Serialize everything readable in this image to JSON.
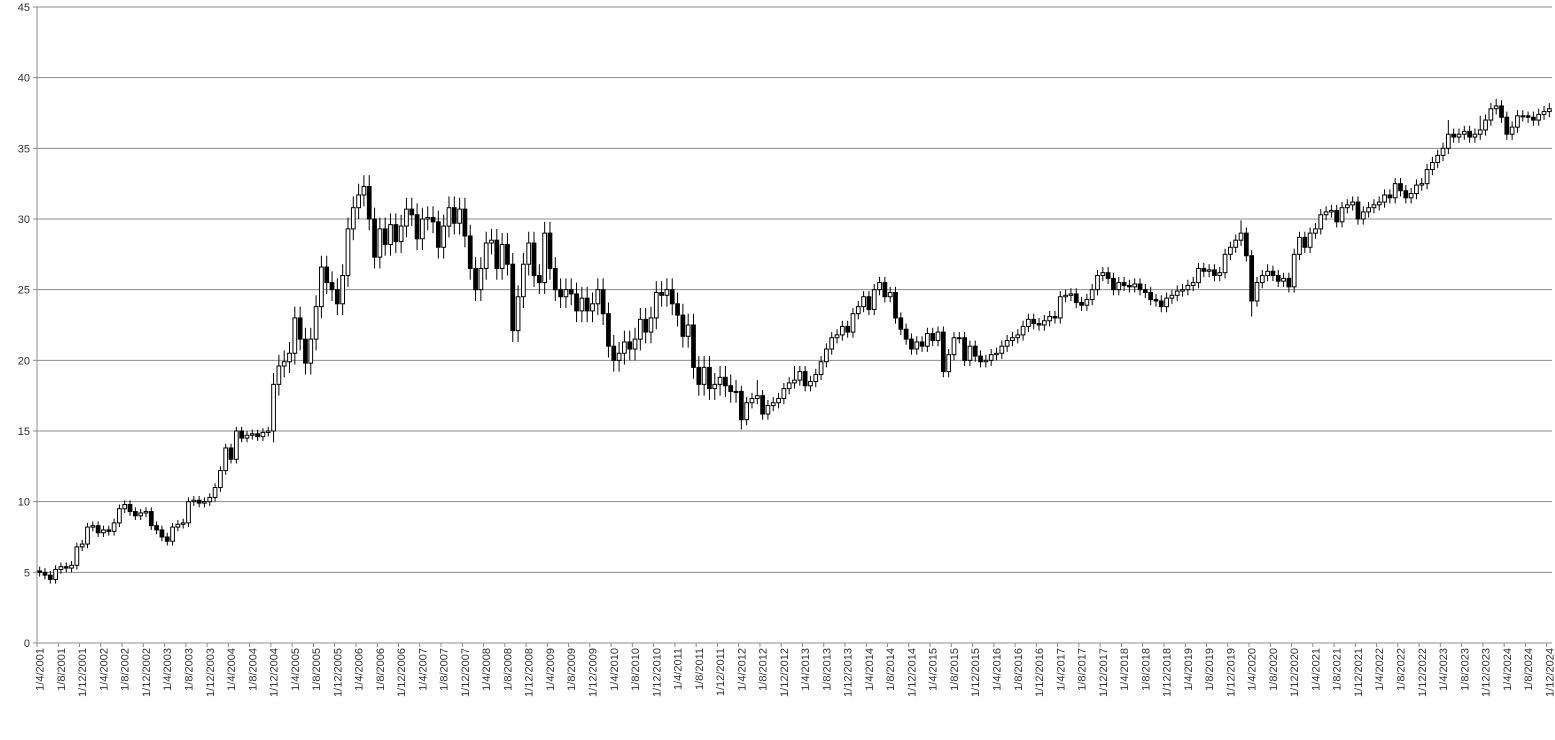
{
  "chart_data": {
    "type": "candlestick",
    "categories": [
      "1/4/2001",
      null,
      null,
      null,
      "1/8/2001",
      null,
      null,
      null,
      "1/12/2001",
      null,
      null,
      null,
      "1/4/2002",
      null,
      null,
      null,
      "1/8/2002",
      null,
      null,
      null,
      "1/12/2002",
      null,
      null,
      null,
      "1/4/2003",
      null,
      null,
      null,
      "1/8/2003",
      null,
      null,
      null,
      "1/12/2003",
      null,
      null,
      null,
      "1/4/2004",
      null,
      null,
      null,
      "1/8/2004",
      null,
      null,
      null,
      "1/12/2004",
      null,
      null,
      null,
      "1/4/2005",
      null,
      null,
      null,
      "1/8/2005",
      null,
      null,
      null,
      "1/12/2005",
      null,
      null,
      null,
      "1/4/2006",
      null,
      null,
      null,
      "1/8/2006",
      null,
      null,
      null,
      "1/12/2006",
      null,
      null,
      null,
      "1/4/2007",
      null,
      null,
      null,
      "1/8/2007",
      null,
      null,
      null,
      "1/12/2007",
      null,
      null,
      null,
      "1/4/2008",
      null,
      null,
      null,
      "1/8/2008",
      null,
      null,
      null,
      "1/12/2008",
      null,
      null,
      null,
      "1/4/2009",
      null,
      null,
      null,
      "1/8/2009",
      null,
      null,
      null,
      "1/12/2009",
      null,
      null,
      null,
      "1/4/2010",
      null,
      null,
      null,
      "1/8/2010",
      null,
      null,
      null,
      "1/12/2010",
      null,
      null,
      null,
      "1/4/2011",
      null,
      null,
      null,
      "1/8/2011",
      null,
      null,
      null,
      "1/12/2011",
      null,
      null,
      null,
      "1/4/2012",
      null,
      null,
      null,
      "1/8/2012",
      null,
      null,
      null,
      "1/12/2012",
      null,
      null,
      null,
      "1/4/2013",
      null,
      null,
      null,
      "1/8/2013",
      null,
      null,
      null,
      "1/12/2013",
      null,
      null,
      null,
      "1/4/2014",
      null,
      null,
      null,
      "1/8/2014",
      null,
      null,
      null,
      "1/12/2014",
      null,
      null,
      null,
      "1/4/2015",
      null,
      null,
      null,
      "1/8/2015",
      null,
      null,
      null,
      "1/12/2015",
      null,
      null,
      null,
      "1/4/2016",
      null,
      null,
      null,
      "1/8/2016",
      null,
      null,
      null,
      "1/12/2016",
      null,
      null,
      null,
      "1/4/2017",
      null,
      null,
      null,
      "1/8/2017",
      null,
      null,
      null,
      "1/12/2017",
      null,
      null,
      null,
      "1/4/2018",
      null,
      null,
      null,
      "1/8/2018",
      null,
      null,
      null,
      "1/12/2018",
      null,
      null,
      null,
      "1/4/2019",
      null,
      null,
      null,
      "1/8/2019",
      null,
      null,
      null,
      "1/12/2019",
      null,
      null,
      null,
      "1/4/2020",
      null,
      null,
      null,
      "1/8/2020",
      null,
      null,
      null,
      "1/12/2020",
      null,
      null,
      null,
      "1/4/2021",
      null,
      null,
      null,
      "1/8/2021",
      null,
      null,
      null,
      "1/12/2021",
      null,
      null,
      null,
      "1/4/2022",
      null,
      null,
      null,
      "1/8/2022",
      null,
      null,
      null,
      "1/12/2022",
      null,
      null,
      null,
      "1/4/2023",
      null,
      null,
      null,
      "1/8/2023",
      null,
      null,
      null,
      "1/12/2023",
      null,
      null,
      null,
      "1/4/2024",
      null,
      null,
      null,
      "1/8/2024",
      null,
      null,
      null,
      "1/12/2024"
    ],
    "open": [
      5.1,
      5.0,
      4.8,
      4.5,
      5.2,
      5.4,
      5.3,
      5.5,
      6.8,
      7.0,
      8.2,
      8.3,
      7.8,
      8.0,
      7.9,
      8.5,
      9.5,
      9.8,
      9.3,
      9.0,
      9.2,
      9.3,
      8.3,
      8.0,
      7.5,
      7.2,
      8.2,
      8.4,
      8.5,
      10.0,
      10.1,
      9.9,
      10.0,
      10.3,
      11.0,
      12.2,
      13.8,
      13.0,
      15.0,
      14.5,
      14.7,
      14.8,
      14.6,
      14.9,
      15.0,
      18.3,
      19.6,
      19.9,
      20.5,
      23.0,
      21.5,
      19.8,
      21.5,
      23.8,
      26.6,
      25.5,
      25.0,
      24.0,
      26.0,
      29.3,
      30.8,
      31.7,
      32.3,
      30.0,
      27.3,
      29.3,
      28.2,
      29.6,
      28.4,
      29.5,
      30.7,
      30.3,
      28.6,
      30.0,
      30.1,
      29.8,
      28.0,
      29.5,
      30.8,
      29.7,
      30.7,
      28.8,
      26.5,
      25.0,
      26.5,
      28.3,
      28.5,
      26.5,
      28.2,
      26.8,
      22.1,
      24.5,
      26.8,
      28.3,
      26.0,
      25.5,
      29.0,
      26.5,
      25.0,
      24.5,
      25.0,
      24.7,
      23.5,
      24.4,
      23.5,
      24.0,
      25.0,
      23.3,
      21.0,
      20.0,
      20.5,
      21.3,
      20.8,
      21.5,
      22.9,
      22.0,
      23.0,
      24.8,
      24.6,
      25.0,
      24.0,
      23.2,
      21.7,
      22.5,
      19.5,
      18.3,
      19.5,
      18.0,
      18.3,
      18.8,
      18.2,
      17.8,
      17.8,
      15.8,
      17.0,
      17.3,
      17.5,
      16.2,
      16.8,
      17.0,
      17.3,
      18.0,
      18.4,
      18.6,
      19.2,
      18.2,
      18.5,
      19.0,
      19.9,
      20.8,
      21.6,
      21.8,
      22.4,
      22.0,
      23.3,
      23.8,
      24.5,
      23.6,
      25.0,
      25.5,
      24.5,
      24.8,
      23.0,
      22.2,
      21.5,
      20.8,
      21.3,
      21.0,
      21.9,
      21.4,
      22.0,
      19.2,
      20.4,
      21.6,
      21.6,
      20.0,
      21.0,
      20.3,
      19.9,
      20.0,
      20.4,
      20.5,
      21.0,
      21.4,
      21.6,
      21.8,
      22.4,
      22.9,
      22.6,
      22.5,
      22.8,
      23.1,
      23.0,
      24.5,
      24.6,
      24.7,
      24.1,
      23.9,
      24.3,
      25.0,
      26.0,
      26.2,
      25.8,
      25.0,
      25.5,
      25.3,
      25.2,
      25.4,
      25.0,
      24.8,
      24.3,
      24.2,
      23.8,
      24.4,
      24.6,
      24.9,
      25.0,
      25.3,
      25.5,
      26.5,
      26.3,
      26.4,
      26.0,
      26.2,
      27.5,
      28.0,
      28.5,
      29.0,
      27.4,
      24.2,
      25.5,
      26.0,
      26.3,
      26.0,
      25.6,
      25.8,
      25.2,
      27.5,
      28.7,
      28.0,
      29.0,
      29.3,
      30.3,
      30.5,
      30.6,
      29.8,
      30.8,
      31.0,
      31.2,
      30.0,
      30.5,
      30.8,
      31.0,
      31.2,
      31.7,
      31.5,
      32.5,
      32.0,
      31.5,
      31.8,
      32.4,
      32.5,
      33.5,
      34.0,
      34.5,
      35.0,
      36.0,
      35.8,
      36.0,
      36.2,
      35.8,
      36.0,
      36.3,
      37.0,
      37.8,
      38.0,
      37.2,
      36.0,
      36.5,
      37.3,
      37.3,
      37.2,
      37.0,
      37.4,
      37.6
    ],
    "high": [
      5.4,
      5.3,
      5.1,
      5.5,
      5.7,
      5.7,
      5.8,
      7.1,
      7.3,
      8.5,
      8.6,
      8.6,
      8.3,
      8.3,
      8.8,
      9.8,
      10.1,
      10.1,
      9.6,
      9.5,
      9.6,
      9.6,
      8.6,
      8.3,
      7.8,
      8.5,
      8.7,
      8.8,
      10.3,
      10.4,
      10.4,
      10.3,
      10.6,
      11.3,
      12.5,
      14.1,
      14.1,
      15.3,
      15.3,
      15.0,
      15.1,
      15.1,
      15.2,
      15.3,
      19.1,
      20.4,
      20.7,
      21.3,
      23.8,
      23.8,
      22.3,
      22.3,
      24.6,
      27.4,
      27.4,
      26.3,
      25.8,
      26.8,
      30.1,
      31.6,
      32.5,
      33.1,
      33.1,
      30.8,
      30.1,
      30.1,
      30.4,
      30.4,
      30.3,
      31.5,
      31.5,
      31.1,
      30.8,
      30.9,
      30.9,
      30.6,
      30.3,
      31.6,
      31.6,
      31.5,
      31.5,
      29.6,
      27.3,
      27.3,
      29.1,
      29.3,
      29.3,
      29.0,
      29.0,
      27.6,
      25.3,
      27.6,
      29.1,
      29.1,
      26.8,
      29.8,
      29.8,
      27.3,
      25.8,
      25.8,
      25.8,
      25.5,
      25.2,
      25.2,
      24.8,
      25.8,
      25.8,
      24.1,
      21.8,
      21.3,
      22.1,
      22.1,
      22.3,
      23.7,
      23.7,
      23.8,
      25.6,
      25.6,
      25.8,
      25.8,
      24.8,
      24.0,
      23.3,
      23.3,
      20.3,
      20.3,
      20.3,
      19.1,
      19.6,
      19.6,
      19.0,
      18.6,
      18.2,
      17.4,
      17.7,
      18.6,
      17.9,
      17.2,
      17.4,
      17.7,
      18.4,
      18.8,
      19.6,
      19.6,
      19.6,
      18.9,
      19.4,
      20.3,
      21.2,
      22.0,
      22.2,
      22.8,
      22.8,
      23.7,
      24.2,
      24.9,
      24.9,
      25.4,
      25.9,
      25.9,
      25.2,
      25.2,
      23.4,
      22.6,
      21.9,
      21.7,
      21.7,
      22.3,
      22.3,
      22.4,
      22.4,
      20.8,
      22.0,
      22.0,
      22.0,
      21.4,
      21.4,
      20.7,
      20.4,
      20.8,
      20.9,
      21.4,
      21.8,
      22.0,
      22.2,
      22.8,
      23.3,
      23.3,
      23.0,
      23.2,
      23.5,
      23.5,
      24.9,
      25.0,
      25.1,
      25.1,
      24.5,
      24.7,
      25.4,
      26.4,
      26.6,
      26.6,
      26.2,
      25.9,
      25.9,
      25.7,
      25.8,
      25.8,
      25.4,
      25.2,
      24.7,
      24.6,
      24.8,
      25.0,
      25.3,
      25.4,
      25.7,
      25.9,
      26.9,
      26.9,
      26.8,
      26.8,
      26.6,
      27.9,
      28.4,
      28.9,
      29.9,
      29.4,
      27.8,
      25.9,
      26.4,
      26.8,
      26.7,
      26.4,
      26.2,
      26.2,
      27.9,
      29.1,
      29.1,
      29.4,
      29.7,
      30.7,
      30.9,
      31.0,
      31.0,
      31.2,
      31.4,
      31.6,
      31.6,
      30.9,
      31.2,
      31.4,
      31.6,
      32.1,
      32.1,
      32.9,
      32.9,
      32.4,
      32.2,
      32.8,
      32.9,
      33.9,
      34.4,
      34.9,
      35.4,
      37.0,
      36.4,
      36.4,
      36.6,
      36.6,
      36.4,
      37.3,
      37.4,
      38.2,
      38.5,
      38.4,
      37.6,
      36.9,
      37.7,
      37.7,
      37.6,
      37.6,
      37.8,
      38.0,
      38.2
    ],
    "low": [
      4.7,
      4.5,
      4.2,
      4.2,
      4.9,
      5.0,
      5.0,
      5.2,
      6.5,
      6.7,
      7.9,
      7.5,
      7.5,
      7.6,
      7.6,
      8.2,
      9.2,
      9.0,
      8.7,
      8.7,
      8.9,
      8.0,
      7.7,
      7.2,
      6.9,
      6.9,
      7.9,
      8.1,
      8.2,
      9.7,
      9.6,
      9.6,
      9.7,
      10.0,
      10.7,
      11.9,
      12.7,
      12.7,
      14.2,
      14.2,
      14.4,
      14.3,
      14.3,
      14.6,
      14.2,
      17.5,
      18.8,
      19.1,
      19.7,
      20.7,
      19.0,
      19.0,
      20.7,
      23.0,
      24.7,
      24.2,
      23.2,
      23.2,
      25.2,
      28.5,
      30.0,
      30.9,
      29.2,
      26.5,
      26.5,
      27.4,
      27.4,
      27.6,
      27.6,
      28.7,
      29.5,
      27.8,
      27.8,
      29.2,
      29.0,
      27.2,
      27.2,
      28.7,
      28.9,
      28.9,
      28.0,
      25.7,
      24.2,
      24.2,
      25.7,
      27.5,
      25.7,
      25.7,
      26.0,
      21.3,
      21.3,
      23.7,
      26.0,
      25.2,
      24.7,
      24.7,
      25.7,
      24.2,
      23.7,
      23.7,
      23.9,
      22.7,
      22.7,
      22.7,
      22.7,
      23.2,
      22.5,
      20.2,
      19.2,
      19.2,
      19.7,
      20.0,
      20.0,
      20.7,
      21.2,
      21.2,
      22.2,
      23.8,
      23.8,
      23.2,
      22.4,
      20.9,
      20.9,
      18.7,
      17.5,
      17.5,
      17.2,
      17.2,
      17.5,
      17.4,
      17.0,
      17.0,
      15.1,
      15.4,
      16.6,
      16.9,
      15.8,
      15.8,
      16.4,
      16.6,
      16.9,
      17.6,
      18.0,
      18.2,
      17.8,
      17.8,
      18.1,
      18.6,
      19.5,
      20.4,
      21.2,
      21.4,
      21.6,
      21.6,
      22.9,
      23.4,
      23.2,
      23.2,
      24.6,
      24.1,
      24.1,
      22.6,
      21.8,
      21.1,
      20.4,
      20.4,
      20.6,
      20.6,
      21.0,
      21.0,
      18.8,
      18.8,
      20.0,
      21.2,
      19.6,
      19.6,
      19.9,
      19.5,
      19.5,
      19.6,
      20.0,
      20.1,
      20.6,
      21.0,
      21.2,
      21.4,
      22.0,
      22.2,
      22.1,
      22.1,
      22.4,
      22.6,
      22.6,
      24.1,
      24.2,
      23.7,
      23.5,
      23.5,
      23.9,
      24.6,
      25.6,
      25.4,
      24.6,
      24.6,
      24.9,
      24.8,
      24.8,
      24.6,
      24.4,
      23.9,
      23.8,
      23.4,
      23.4,
      24.0,
      24.2,
      24.5,
      24.6,
      24.9,
      25.1,
      25.9,
      25.9,
      25.6,
      25.6,
      25.8,
      27.1,
      27.6,
      28.1,
      27.0,
      23.1,
      23.8,
      25.1,
      25.6,
      25.6,
      25.2,
      25.2,
      24.8,
      24.8,
      27.1,
      27.6,
      27.6,
      28.6,
      28.9,
      29.9,
      30.1,
      29.4,
      29.4,
      30.4,
      30.6,
      29.6,
      29.6,
      30.1,
      30.4,
      30.6,
      30.8,
      31.1,
      31.1,
      31.6,
      31.1,
      31.1,
      31.4,
      32.0,
      32.1,
      33.1,
      33.6,
      34.1,
      34.6,
      35.4,
      35.4,
      35.6,
      35.4,
      35.4,
      35.6,
      35.9,
      36.6,
      37.4,
      36.8,
      35.6,
      35.6,
      36.1,
      36.9,
      36.8,
      36.6,
      36.6,
      37.0,
      37.2
    ],
    "close": [
      5.0,
      4.8,
      4.5,
      5.2,
      5.4,
      5.3,
      5.5,
      6.8,
      7.0,
      8.2,
      8.3,
      7.8,
      8.0,
      7.9,
      8.5,
      9.5,
      9.8,
      9.3,
      9.0,
      9.2,
      9.3,
      8.3,
      8.0,
      7.5,
      7.2,
      8.2,
      8.4,
      8.5,
      10.0,
      10.1,
      9.9,
      10.0,
      10.3,
      11.0,
      12.2,
      13.8,
      13.0,
      15.0,
      14.5,
      14.7,
      14.8,
      14.6,
      14.9,
      15.0,
      18.3,
      19.6,
      19.9,
      20.5,
      23.0,
      21.5,
      19.8,
      21.5,
      23.8,
      26.6,
      25.5,
      25.0,
      24.0,
      26.0,
      29.3,
      30.8,
      31.7,
      32.3,
      30.0,
      27.3,
      29.3,
      28.2,
      29.6,
      28.4,
      29.5,
      30.7,
      30.3,
      28.6,
      30.0,
      30.1,
      29.8,
      28.0,
      29.5,
      30.8,
      29.7,
      30.7,
      28.8,
      26.5,
      25.0,
      26.5,
      28.3,
      28.5,
      26.5,
      28.2,
      26.8,
      22.1,
      24.5,
      26.8,
      28.3,
      26.0,
      25.5,
      29.0,
      26.5,
      25.0,
      24.5,
      25.0,
      24.7,
      23.5,
      24.4,
      23.5,
      24.0,
      25.0,
      23.3,
      21.0,
      20.0,
      20.5,
      21.3,
      20.8,
      21.5,
      22.9,
      22.0,
      23.0,
      24.8,
      24.6,
      25.0,
      24.0,
      23.2,
      21.7,
      22.5,
      19.5,
      18.3,
      19.5,
      18.0,
      18.3,
      18.8,
      18.2,
      17.8,
      17.8,
      15.8,
      17.0,
      17.3,
      17.5,
      16.2,
      16.8,
      17.0,
      17.3,
      18.0,
      18.4,
      18.6,
      19.2,
      18.2,
      18.5,
      19.0,
      19.9,
      20.8,
      21.6,
      21.8,
      22.4,
      22.0,
      23.3,
      23.8,
      24.5,
      23.6,
      25.0,
      25.5,
      24.5,
      24.8,
      23.0,
      22.2,
      21.5,
      20.8,
      21.3,
      21.0,
      21.9,
      21.4,
      22.0,
      19.2,
      20.4,
      21.6,
      21.6,
      20.0,
      21.0,
      20.3,
      19.9,
      20.0,
      20.4,
      20.5,
      21.0,
      21.4,
      21.6,
      21.8,
      22.4,
      22.9,
      22.6,
      22.5,
      22.8,
      23.1,
      23.0,
      24.5,
      24.6,
      24.7,
      24.1,
      23.9,
      24.3,
      25.0,
      26.0,
      26.2,
      25.8,
      25.0,
      25.5,
      25.3,
      25.2,
      25.4,
      25.0,
      24.8,
      24.3,
      24.2,
      23.8,
      24.4,
      24.6,
      24.9,
      25.0,
      25.3,
      25.5,
      26.5,
      26.3,
      26.4,
      26.0,
      26.2,
      27.5,
      28.0,
      28.5,
      29.0,
      27.4,
      24.2,
      25.5,
      26.0,
      26.3,
      26.0,
      25.6,
      25.8,
      25.2,
      27.5,
      28.7,
      28.0,
      29.0,
      29.3,
      30.3,
      30.5,
      30.6,
      29.8,
      30.8,
      31.0,
      31.2,
      30.0,
      30.5,
      30.8,
      31.0,
      31.2,
      31.7,
      31.5,
      32.5,
      32.0,
      31.5,
      31.8,
      32.4,
      32.5,
      33.5,
      34.0,
      34.5,
      35.0,
      36.0,
      35.8,
      36.0,
      36.2,
      35.8,
      36.0,
      36.3,
      37.0,
      37.8,
      38.0,
      37.2,
      36.0,
      36.5,
      37.3,
      37.3,
      37.2,
      37.0,
      37.4,
      37.6,
      37.8
    ],
    "up_color": "#ffffff",
    "down_color": "#000000",
    "line_color": "#000000",
    "ylim": [
      0,
      45
    ],
    "yticks": [
      0,
      5,
      10,
      15,
      20,
      25,
      30,
      35,
      40,
      45
    ],
    "grid": true
  }
}
